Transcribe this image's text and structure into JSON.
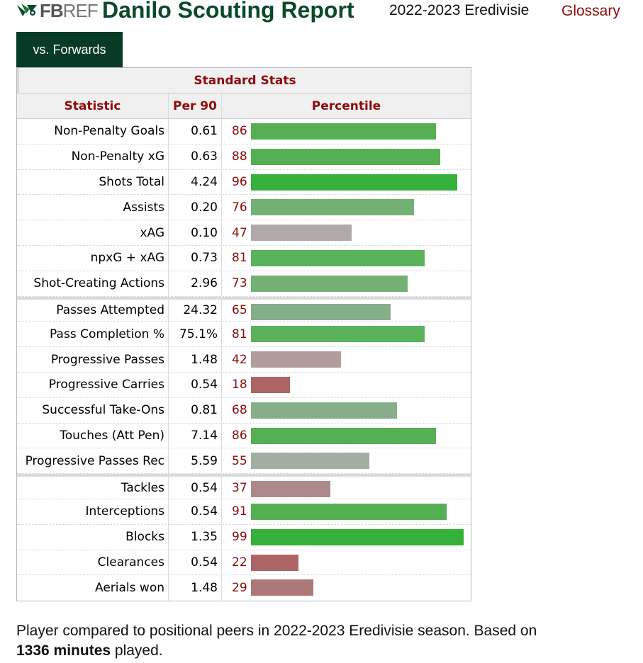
{
  "header": {
    "logo_text_fb": "FB",
    "logo_text_ref": "REF",
    "title": "Danilo Scouting Report",
    "season": "2022-2023 Eredivisie",
    "glossary": "Glossary"
  },
  "tabs": [
    {
      "label": "vs. Forwards",
      "active": true
    }
  ],
  "table": {
    "caption": "Standard Stats",
    "columns": [
      "Statistic",
      "Per 90",
      "Percentile"
    ],
    "groups": [
      [
        {
          "stat": "Non-Penalty Goals",
          "per90": "0.61",
          "percentile": 86
        },
        {
          "stat": "Non-Penalty xG",
          "per90": "0.63",
          "percentile": 88
        },
        {
          "stat": "Shots Total",
          "per90": "4.24",
          "percentile": 96
        },
        {
          "stat": "Assists",
          "per90": "0.20",
          "percentile": 76
        },
        {
          "stat": "xAG",
          "per90": "0.10",
          "percentile": 47
        },
        {
          "stat": "npxG + xAG",
          "per90": "0.73",
          "percentile": 81
        },
        {
          "stat": "Shot-Creating Actions",
          "per90": "2.96",
          "percentile": 73
        }
      ],
      [
        {
          "stat": "Passes Attempted",
          "per90": "24.32",
          "percentile": 65
        },
        {
          "stat": "Pass Completion %",
          "per90": "75.1%",
          "percentile": 81
        },
        {
          "stat": "Progressive Passes",
          "per90": "1.48",
          "percentile": 42
        },
        {
          "stat": "Progressive Carries",
          "per90": "0.54",
          "percentile": 18
        },
        {
          "stat": "Successful Take-Ons",
          "per90": "0.81",
          "percentile": 68
        },
        {
          "stat": "Touches (Att Pen)",
          "per90": "7.14",
          "percentile": 86
        },
        {
          "stat": "Progressive Passes Rec",
          "per90": "5.59",
          "percentile": 55
        }
      ],
      [
        {
          "stat": "Tackles",
          "per90": "0.54",
          "percentile": 37
        },
        {
          "stat": "Interceptions",
          "per90": "0.54",
          "percentile": 91
        },
        {
          "stat": "Blocks",
          "per90": "1.35",
          "percentile": 99
        },
        {
          "stat": "Clearances",
          "per90": "0.54",
          "percentile": 22
        },
        {
          "stat": "Aerials won",
          "per90": "1.48",
          "percentile": 29
        }
      ]
    ]
  },
  "note": {
    "prefix": "Player compared to positional peers in 2022-2023 Eredivisie season. Based on",
    "minutes": "1336 minutes",
    "suffix": " played."
  },
  "colors": {
    "title": "#0a4a2a",
    "tab_bg": "#083b26",
    "accent_red": "#8f0a0a"
  }
}
